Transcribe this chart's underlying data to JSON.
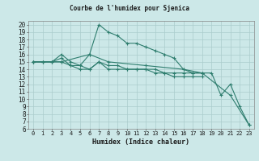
{
  "title": "Courbe de l'humidex pour Sjenica",
  "xlabel": "Humidex (Indice chaleur)",
  "bg_color": "#cce8e8",
  "grid_color": "#aacccc",
  "line_color": "#2e7d6e",
  "xlim": [
    -0.5,
    23.5
  ],
  "ylim": [
    6,
    20.5
  ],
  "xticks": [
    0,
    1,
    2,
    3,
    4,
    5,
    6,
    7,
    8,
    9,
    10,
    11,
    12,
    13,
    14,
    15,
    16,
    17,
    18,
    19,
    20,
    21,
    22,
    23
  ],
  "yticks": [
    6,
    7,
    8,
    9,
    10,
    11,
    12,
    13,
    14,
    15,
    16,
    17,
    18,
    19,
    20
  ],
  "lines": [
    {
      "x": [
        0,
        1,
        2,
        3,
        4,
        5,
        6,
        7,
        8,
        9,
        10,
        11,
        12,
        13,
        14,
        15,
        16,
        17,
        18,
        19,
        20,
        21,
        22,
        23
      ],
      "y": [
        15,
        15,
        15,
        15,
        14.5,
        14.5,
        16,
        20,
        19,
        18.5,
        17.5,
        17.5,
        17,
        16.5,
        16,
        15.5,
        14,
        13.5,
        13.5,
        13.5,
        10.5,
        12,
        9,
        6.5
      ]
    },
    {
      "x": [
        0,
        1,
        2,
        3,
        4,
        5,
        6,
        7,
        8,
        9,
        10,
        11,
        12,
        13,
        14,
        15,
        16,
        17,
        18
      ],
      "y": [
        15,
        15,
        15,
        15.5,
        14.5,
        14,
        14,
        15,
        14.5,
        14.5,
        14,
        14,
        14,
        14,
        13.5,
        13.5,
        13.5,
        13.5,
        13.5
      ]
    },
    {
      "x": [
        0,
        1,
        2,
        3,
        4,
        5,
        6,
        7,
        8,
        9,
        10,
        11,
        12,
        13,
        14,
        15,
        16,
        17,
        18
      ],
      "y": [
        15,
        15,
        15,
        16,
        15,
        14.5,
        14,
        15,
        14,
        14,
        14,
        14,
        14,
        13.5,
        13.5,
        13,
        13,
        13,
        13
      ]
    },
    {
      "x": [
        0,
        3,
        6,
        8,
        12,
        16,
        18,
        21,
        23
      ],
      "y": [
        15,
        15,
        16,
        15,
        14.5,
        14,
        13.5,
        10.5,
        6.5
      ]
    }
  ]
}
